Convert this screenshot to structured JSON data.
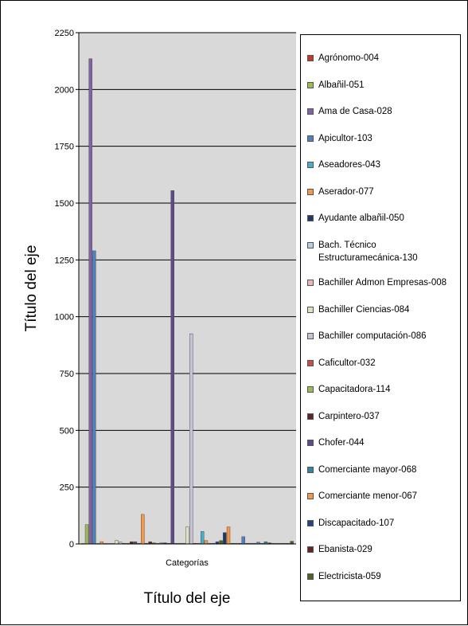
{
  "chart_data": {
    "type": "bar",
    "categories": [
      "Categorías"
    ],
    "xlabel": "Título del eje",
    "ylabel": "Título del eje",
    "ylim": [
      0,
      2250
    ],
    "yticks": [
      0,
      250,
      500,
      750,
      1000,
      1250,
      1500,
      1750,
      2000,
      2250
    ],
    "grid": true,
    "legend_position": "right",
    "series": [
      {
        "name": "Agrónomo-004",
        "values": [
          2
        ],
        "color": "#c0392b"
      },
      {
        "name": "Albañil-051",
        "values": [
          85
        ],
        "color": "#9bbb59"
      },
      {
        "name": "Ama de Casa-028",
        "values": [
          2135
        ],
        "color": "#8064a2"
      },
      {
        "name": "Apicultor-103",
        "values": [
          1290
        ],
        "color": "#4f81bd"
      },
      {
        "name": "Aseadores-043",
        "values": [
          2
        ],
        "color": "#4bacc6"
      },
      {
        "name": "Aserador-077",
        "values": [
          10
        ],
        "color": "#f79646"
      },
      {
        "name": "Ayudante albañil-050",
        "values": [
          2
        ],
        "color": "#1f3864"
      },
      {
        "name": "Bach. Técnico Estructuramecánica-130",
        "values": [
          2
        ],
        "color": "#b8cce4"
      },
      {
        "name": "Bachiller Admon Empresas-008",
        "values": [
          2
        ],
        "color": "#e6b9b8"
      },
      {
        "name": "Bachiller Ciencias-084",
        "values": [
          15
        ],
        "color": "#d7e4bd"
      },
      {
        "name": "Bachiller computación-086",
        "values": [
          8
        ],
        "color": "#ccc1da"
      },
      {
        "name": "Caficultor-032",
        "values": [
          3
        ],
        "color": "#c0504d"
      },
      {
        "name": "Capacitadora-114",
        "values": [
          3
        ],
        "color": "#9bbb59"
      },
      {
        "name": "Carpintero-037",
        "values": [
          10
        ],
        "color": "#632523"
      },
      {
        "name": "Chofer-044",
        "values": [
          10
        ],
        "color": "#5f4b8b"
      },
      {
        "name": "Comerciante mayor-068",
        "values": [
          3
        ],
        "color": "#31859c"
      },
      {
        "name": "Comerciante menor-067",
        "values": [
          130
        ],
        "color": "#f79646"
      },
      {
        "name": "Discapacitado-107",
        "values": [
          3
        ],
        "color": "#1f497d"
      },
      {
        "name": "Ebanista-029",
        "values": [
          10
        ],
        "color": "#632523"
      },
      {
        "name": "Electricista-059",
        "values": [
          5
        ],
        "color": "#4f6228"
      },
      {
        "name": "",
        "values": [
          3
        ],
        "color": "#4bacc6"
      },
      {
        "name": "",
        "values": [
          5
        ],
        "color": "#8064a2"
      },
      {
        "name": "",
        "values": [
          5
        ],
        "color": "#1f3864"
      },
      {
        "name": "",
        "values": [
          3
        ],
        "color": "#632523"
      },
      {
        "name": "",
        "values": [
          1555
        ],
        "color": "#5f4b8b"
      },
      {
        "name": "",
        "values": [
          3
        ],
        "color": "#4f81bd"
      },
      {
        "name": "",
        "values": [
          3
        ],
        "color": "#f79646"
      },
      {
        "name": "",
        "values": [
          3
        ],
        "color": "#9bbb59"
      },
      {
        "name": "",
        "values": [
          75
        ],
        "color": "#d7e4bd"
      },
      {
        "name": "",
        "values": [
          925
        ],
        "color": "#ccc1da"
      },
      {
        "name": "",
        "values": [
          3
        ],
        "color": "#c0504d"
      },
      {
        "name": "",
        "values": [
          3
        ],
        "color": "#e6b9b8"
      },
      {
        "name": "",
        "values": [
          55
        ],
        "color": "#4bacc6"
      },
      {
        "name": "",
        "values": [
          15
        ],
        "color": "#f79646"
      },
      {
        "name": "",
        "values": [
          3
        ],
        "color": "#9bbb59"
      },
      {
        "name": "",
        "values": [
          3
        ],
        "color": "#4f81bd"
      },
      {
        "name": "",
        "values": [
          10
        ],
        "color": "#1f497d"
      },
      {
        "name": "",
        "values": [
          15
        ],
        "color": "#4f6228"
      },
      {
        "name": "",
        "values": [
          50
        ],
        "color": "#1f3864"
      },
      {
        "name": "",
        "values": [
          75
        ],
        "color": "#f79646"
      },
      {
        "name": "",
        "values": [
          3
        ],
        "color": "#c0504d"
      },
      {
        "name": "",
        "values": [
          3
        ],
        "color": "#9bbb59"
      },
      {
        "name": "",
        "values": [
          3
        ],
        "color": "#8064a2"
      },
      {
        "name": "",
        "values": [
          32
        ],
        "color": "#4f81bd"
      },
      {
        "name": "",
        "values": [
          3
        ],
        "color": "#c0504d"
      },
      {
        "name": "",
        "values": [
          3
        ],
        "color": "#9bbb59"
      },
      {
        "name": "",
        "values": [
          3
        ],
        "color": "#8064a2"
      },
      {
        "name": "",
        "values": [
          8
        ],
        "color": "#4f81bd"
      },
      {
        "name": "",
        "values": [
          3
        ],
        "color": "#4bacc6"
      },
      {
        "name": "",
        "values": [
          10
        ],
        "color": "#31859c"
      },
      {
        "name": "",
        "values": [
          5
        ],
        "color": "#1f3864"
      },
      {
        "name": "",
        "values": [
          3
        ],
        "color": "#c0504d"
      },
      {
        "name": "",
        "values": [
          3
        ],
        "color": "#9bbb59"
      },
      {
        "name": "",
        "values": [
          3
        ],
        "color": "#8064a2"
      },
      {
        "name": "",
        "values": [
          3
        ],
        "color": "#4f81bd"
      },
      {
        "name": "",
        "values": [
          3
        ],
        "color": "#4bacc6"
      },
      {
        "name": "",
        "values": [
          12
        ],
        "color": "#4f6228"
      }
    ]
  }
}
